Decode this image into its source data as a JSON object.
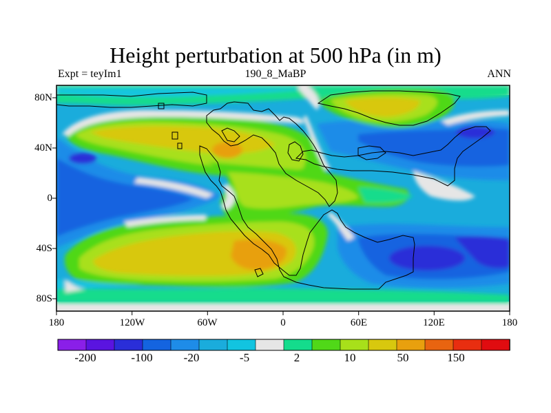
{
  "title": "Height perturbation at 500 hPa (in m)",
  "left_subtitle": "Expt = teyIm1",
  "center_subtitle": "190_8_MaBP",
  "right_subtitle": "ANN",
  "colors": {
    "background": "#ffffff",
    "frame": "#000000",
    "coastline": "#000000"
  },
  "map": {
    "projection": "cylindrical-equidistant",
    "lon_range": [
      -180,
      180
    ],
    "lat_range": [
      -90,
      90
    ],
    "lon_ticks": [
      "180",
      "120W",
      "60W",
      "0",
      "60E",
      "120E",
      "180"
    ],
    "lat_ticks": [
      "80N",
      "40N",
      "0",
      "40S",
      "80S"
    ]
  },
  "colorbar": {
    "colors": [
      "#8a1fe8",
      "#5a14e0",
      "#2a2ed8",
      "#1464e0",
      "#1e8ce8",
      "#1aacdc",
      "#12c4e0",
      "#e6e6e6",
      "#14dc8c",
      "#50d818",
      "#a8e01a",
      "#d8c80e",
      "#e8a00e",
      "#e86410",
      "#e82e10",
      "#e00c10"
    ],
    "labels": [
      "-200",
      "-100",
      "-20",
      "-5",
      "2",
      "10",
      "50",
      "150"
    ]
  }
}
